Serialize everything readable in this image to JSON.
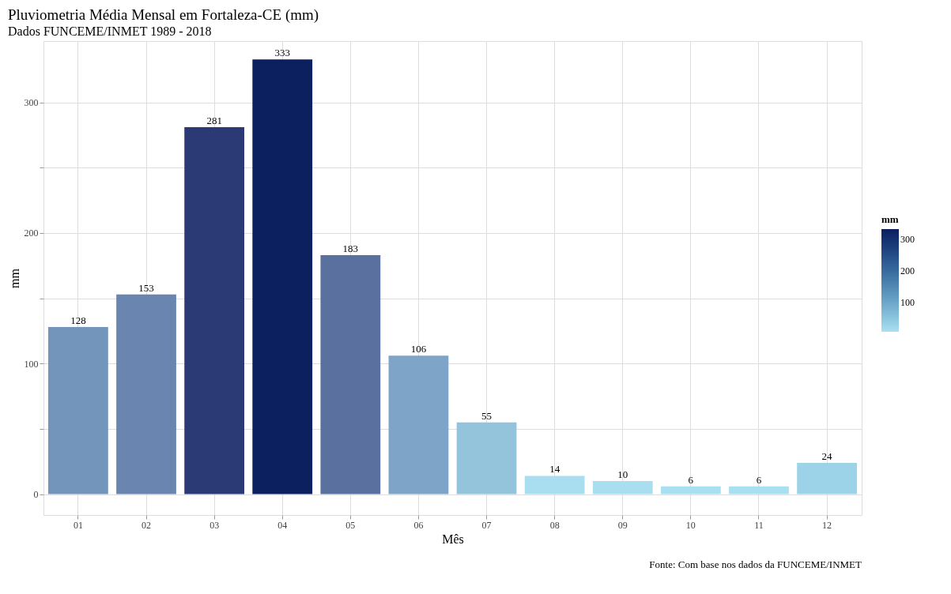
{
  "chart_data": {
    "type": "bar",
    "title": "Pluviometria Média Mensal em Fortaleza-CE (mm)",
    "subtitle": "Dados FUNCEME/INMET 1989 - 2018",
    "xlabel": "Mês",
    "ylabel": "mm",
    "clabel": "mm",
    "categories": [
      "01",
      "02",
      "03",
      "04",
      "05",
      "06",
      "07",
      "08",
      "09",
      "10",
      "11",
      "12"
    ],
    "values": [
      128,
      153,
      281,
      333,
      183,
      106,
      55,
      14,
      10,
      6,
      6,
      24
    ],
    "colors": [
      "#7395bb",
      "#6a86b0",
      "#2b3a75",
      "#0c1f5e",
      "#5a71a0",
      "#7ea5c8",
      "#94c3dc",
      "#a8def0",
      "#a8def0",
      "#a9e0f1",
      "#a9e0f1",
      "#9dd3e8"
    ],
    "clim": [
      6,
      333
    ],
    "cticks": [
      100,
      200,
      300
    ],
    "ylim": [
      -16,
      347
    ],
    "yticks": [
      0,
      {
        "value": 50,
        "label": null
      },
      100,
      {
        "value": 150,
        "label": null
      },
      200,
      {
        "value": 250,
        "label": null
      },
      300
    ],
    "grid": true,
    "data_labels": true,
    "annotations": [
      "Fonte: Com base nos dados da FUNCEME/INMET"
    ]
  }
}
